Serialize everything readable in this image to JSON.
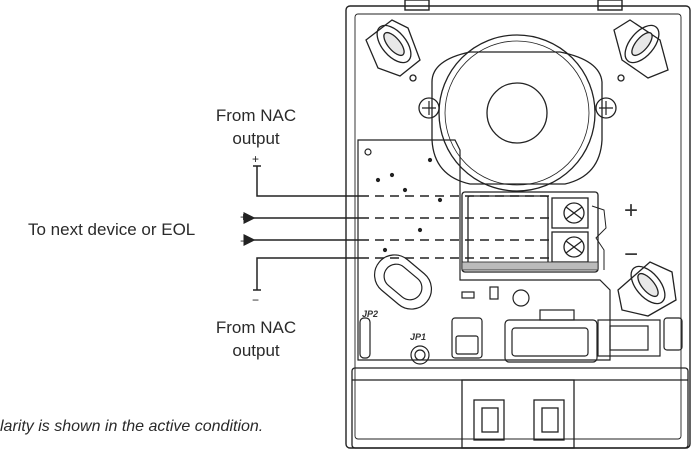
{
  "labels": {
    "from_nac_top": [
      "From NAC",
      "output"
    ],
    "to_next": "To next device or EOL",
    "from_nac_bottom": [
      "From NAC",
      "output"
    ],
    "polarity_note": "larity is shown in the active condition."
  },
  "signs": {
    "top_plus": "+",
    "mid_plus": "+",
    "mid_minus": "−",
    "bottom_minus": "−",
    "housing_plus": "+",
    "housing_minus": "−"
  },
  "pcb": {
    "jumper_jp2": "JP2",
    "jumper_jp1": "JP1"
  }
}
